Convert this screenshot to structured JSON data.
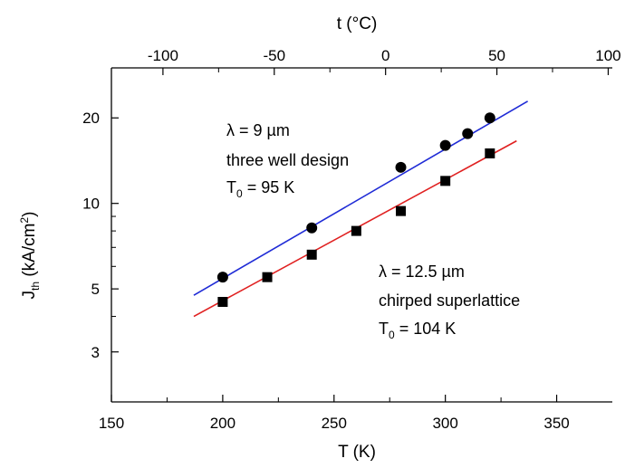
{
  "chart_data": {
    "type": "scatter",
    "xlabel": "T (K)",
    "x2label": "t (°C)",
    "ylabel": {
      "main": "J",
      "sub": "th",
      "units": " (kA/cm",
      "sup": "2",
      "close": ")"
    },
    "xlim": [
      150,
      375
    ],
    "ylim": [
      2,
      30
    ],
    "yscale": "log",
    "x_ticks": [
      "150",
      "200",
      "250",
      "300",
      "350"
    ],
    "x2_ticks": [
      "-100",
      "-50",
      "0",
      "50",
      "100"
    ],
    "y_ticks": [
      "3",
      "5",
      "10",
      "20"
    ],
    "grid": false,
    "series": [
      {
        "color": "#1f2bd6",
        "marker": "circle",
        "x": [
          200,
          240,
          280,
          300,
          310,
          320
        ],
        "y": [
          5.5,
          8.2,
          13.4,
          16.0,
          17.6,
          20.0
        ],
        "fit_line": {
          "x": [
            187,
            337
          ],
          "y": [
            4.75,
            22.9
          ]
        }
      },
      {
        "color": "#e02020",
        "marker": "square",
        "x": [
          200,
          220,
          240,
          260,
          280,
          300,
          320
        ],
        "y": [
          4.5,
          5.5,
          6.6,
          8.0,
          9.4,
          12.0,
          15.0
        ],
        "fit_line": {
          "x": [
            187,
            332
          ],
          "y": [
            4.0,
            16.6
          ]
        }
      }
    ],
    "annotations": {
      "series1": {
        "line1": "λ = 9 µm",
        "line2": "three well design",
        "line3_main": "T",
        "line3_sub": "0",
        "line3_rest": " = 95 K"
      },
      "series2": {
        "line1": "λ = 12.5 µm",
        "line2": "chirped superlattice",
        "line3_main": "T",
        "line3_sub": "0",
        "line3_rest": " = 104 K"
      }
    }
  }
}
